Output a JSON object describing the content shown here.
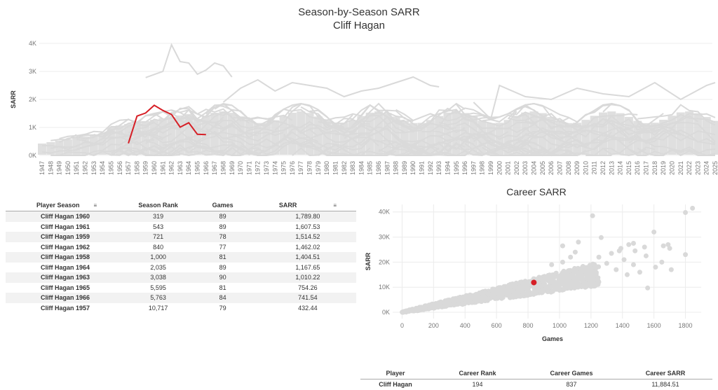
{
  "header": {
    "title": "Season-by-Season SARR",
    "subtitle": "Cliff Hagan"
  },
  "colors": {
    "highlight": "#d61f26",
    "background_series": "#d9d9d9",
    "grid": "#ececec"
  },
  "line_chart": {
    "ylabel": "SARR",
    "y_ticks": [
      "0K",
      "1K",
      "2K",
      "3K",
      "4K"
    ],
    "x_ticks": [
      "1947",
      "1948",
      "1949",
      "1950",
      "1951",
      "1952",
      "1953",
      "1954",
      "1955",
      "1956",
      "1957",
      "1958",
      "1959",
      "1960",
      "1961",
      "1962",
      "1963",
      "1964",
      "1965",
      "1966",
      "1967",
      "1968",
      "1969",
      "1970",
      "1971",
      "1972",
      "1973",
      "1974",
      "1975",
      "1976",
      "1977",
      "1978",
      "1979",
      "1980",
      "1981",
      "1982",
      "1983",
      "1984",
      "1985",
      "1986",
      "1987",
      "1988",
      "1989",
      "1990",
      "1991",
      "1992",
      "1993",
      "1994",
      "1995",
      "1996",
      "1997",
      "1998",
      "1999",
      "2000",
      "2001",
      "2002",
      "2003",
      "2004",
      "2005",
      "2006",
      "2007",
      "2008",
      "2009",
      "2010",
      "2011",
      "2012",
      "2013",
      "2014",
      "2015",
      "2016",
      "2017",
      "2018",
      "2019",
      "2020",
      "2021",
      "2022",
      "2023",
      "2024",
      "2025"
    ]
  },
  "scatter_chart": {
    "title": "Career SARR",
    "xlabel": "Games",
    "ylabel": "SARR",
    "x_ticks": [
      "0",
      "200",
      "400",
      "600",
      "800",
      "1000",
      "1200",
      "1400",
      "1600",
      "1800"
    ],
    "y_ticks": [
      "0K",
      "10K",
      "20K",
      "30K",
      "40K"
    ]
  },
  "season_table": {
    "headers": [
      "Player Season",
      "Season Rank",
      "Games",
      "SARR"
    ],
    "rows": [
      [
        "Cliff Hagan 1960",
        "319",
        "89",
        "1,789.80"
      ],
      [
        "Cliff Hagan 1961",
        "543",
        "89",
        "1,607.53"
      ],
      [
        "Cliff Hagan 1959",
        "721",
        "78",
        "1,514.52"
      ],
      [
        "Cliff Hagan 1962",
        "840",
        "77",
        "1,462.02"
      ],
      [
        "Cliff Hagan 1958",
        "1,000",
        "81",
        "1,404.51"
      ],
      [
        "Cliff Hagan 1964",
        "2,035",
        "89",
        "1,167.65"
      ],
      [
        "Cliff Hagan 1963",
        "3,038",
        "90",
        "1,010.22"
      ],
      [
        "Cliff Hagan 1965",
        "5,595",
        "81",
        "754.26"
      ],
      [
        "Cliff Hagan 1966",
        "5,763",
        "84",
        "741.54"
      ],
      [
        "Cliff Hagan 1957",
        "10,717",
        "79",
        "432.44"
      ]
    ]
  },
  "career_table": {
    "headers": [
      "Player",
      "Career Rank",
      "Career Games",
      "Career SARR"
    ],
    "rows": [
      [
        "Cliff Hagan",
        "194",
        "837",
        "11,884.51"
      ]
    ]
  },
  "chart_data": [
    {
      "type": "line",
      "title": "Season-by-Season SARR",
      "subtitle": "Cliff Hagan",
      "ylabel": "SARR",
      "xlim": [
        1947,
        2025
      ],
      "ylim": [
        0,
        4000
      ],
      "grid": true,
      "series": [
        {
          "name": "Cliff Hagan",
          "x": [
            1957,
            1958,
            1959,
            1960,
            1961,
            1962,
            1963,
            1964,
            1965,
            1966
          ],
          "values": [
            432.44,
            1404.51,
            1514.52,
            1789.8,
            1607.53,
            1462.02,
            1010.22,
            1167.65,
            754.26,
            741.54
          ]
        }
      ]
    },
    {
      "type": "scatter",
      "title": "Career SARR",
      "xlabel": "Games",
      "ylabel": "SARR",
      "xlim": [
        -60,
        1900
      ],
      "ylim": [
        -2500,
        43000
      ],
      "grid": true,
      "highlight": {
        "name": "Cliff Hagan",
        "x": 837,
        "y": 11884.51
      },
      "outliers": [
        [
          1845,
          41500
        ],
        [
          1800,
          39800
        ],
        [
          1210,
          38500
        ],
        [
          1265,
          29800
        ],
        [
          1600,
          32000
        ],
        [
          1660,
          26500
        ],
        [
          1700,
          25500
        ],
        [
          1690,
          27000
        ],
        [
          1020,
          26500
        ],
        [
          1800,
          23000
        ],
        [
          1710,
          17000
        ],
        [
          1510,
          16000
        ],
        [
          1410,
          21000
        ],
        [
          1250,
          22000
        ],
        [
          1380,
          24500
        ],
        [
          1470,
          19000
        ],
        [
          1540,
          26000
        ],
        [
          1470,
          27500
        ],
        [
          1070,
          22000
        ],
        [
          1120,
          28000
        ],
        [
          1330,
          23500
        ],
        [
          1650,
          20000
        ],
        [
          1610,
          18000
        ],
        [
          1430,
          15000
        ],
        [
          1550,
          22500
        ],
        [
          1360,
          17000
        ],
        [
          1480,
          24500
        ],
        [
          1020,
          20000
        ],
        [
          1300,
          19500
        ],
        [
          1560,
          9700
        ],
        [
          1180,
          17500
        ],
        [
          1440,
          27000
        ],
        [
          950,
          19000
        ],
        [
          1390,
          25500
        ],
        [
          1100,
          24000
        ]
      ]
    }
  ]
}
